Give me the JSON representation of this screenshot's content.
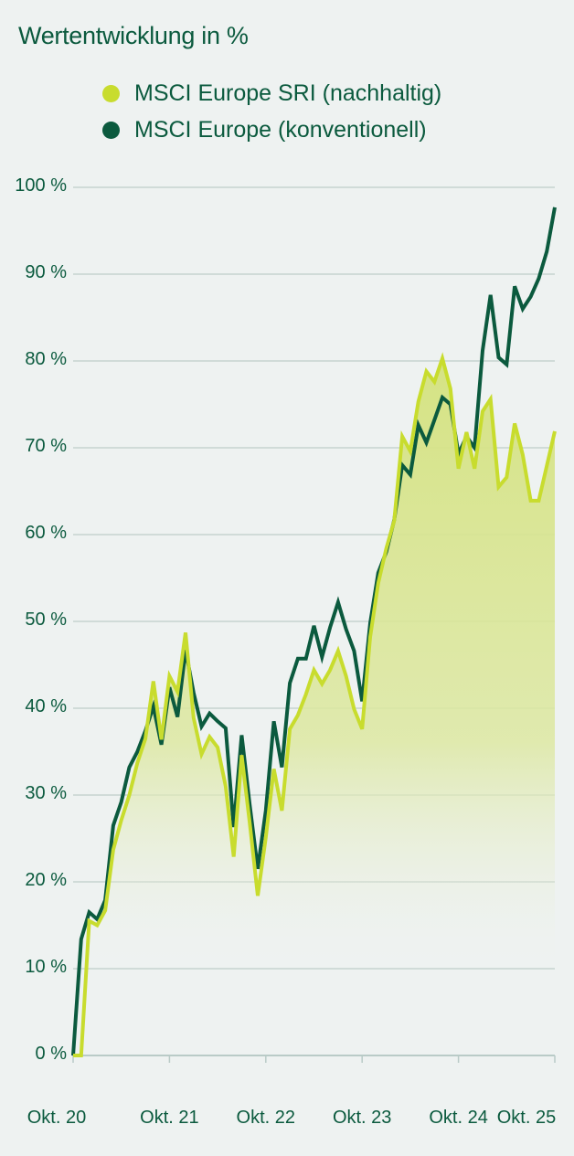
{
  "title": "Wertentwicklung in %",
  "legend": [
    {
      "label": "MSCI Europe SRI (nachhaltig)",
      "color": "#c8dc2e"
    },
    {
      "label": "MSCI Europe (konventionell)",
      "color": "#0b5a3e"
    }
  ],
  "colors": {
    "background": "#eef2f1",
    "grid": "#c5d3d0",
    "axis": "#b9cbc7",
    "text": "#0b5a3e",
    "sri_line": "#c8dc2e",
    "sri_fill": "#d7e48a",
    "conventional_line": "#0b5a3e"
  },
  "y_axis": {
    "ticks": [
      "100 %",
      "90 %",
      "80 %",
      "70 %",
      "60 %",
      "50 %",
      "40 %",
      "30 %",
      "20 %",
      "10 %",
      "0 %"
    ],
    "values": [
      100,
      90,
      80,
      70,
      60,
      50,
      40,
      30,
      20,
      10,
      0
    ]
  },
  "x_axis": {
    "ticks": [
      "Okt. 20",
      "Okt. 21",
      "Okt. 22",
      "Okt. 23",
      "Okt. 24",
      "Okt. 25"
    ]
  },
  "chart_data": {
    "type": "area",
    "title": "Wertentwicklung in %",
    "xlabel": "",
    "ylabel": "Wertentwicklung in %",
    "ylim": [
      0,
      100
    ],
    "grid": true,
    "legend_position": "top",
    "x_ticks": [
      "Okt. 20",
      "Okt. 21",
      "Okt. 22",
      "Okt. 23",
      "Okt. 24",
      "Okt. 25"
    ],
    "x": [
      0,
      1,
      2,
      3,
      4,
      5,
      6,
      7,
      8,
      9,
      10,
      11,
      12,
      13,
      14,
      15,
      16,
      17,
      18,
      19,
      20,
      21,
      22,
      23,
      24,
      25,
      26,
      27,
      28,
      29,
      30,
      31,
      32,
      33,
      34,
      35,
      36,
      37,
      38,
      39,
      40,
      41,
      42,
      43,
      44,
      45,
      46,
      47,
      48,
      49,
      50,
      51,
      52,
      53,
      54,
      55,
      56,
      57,
      58,
      59,
      60
    ],
    "x_unit": "months since Okt. 20",
    "series": [
      {
        "name": "MSCI Europe SRI (nachhaltig)",
        "style": "line+area",
        "values": [
          0,
          0,
          15.5,
          15,
          16.7,
          23.7,
          27.1,
          30,
          33.7,
          36.5,
          43.1,
          36.4,
          43.7,
          41.9,
          48.7,
          38.9,
          34.7,
          36.7,
          35.5,
          31,
          22.9,
          34.6,
          26.8,
          18.4,
          25.1,
          33,
          28.2,
          37.6,
          39.2,
          41.6,
          44.4,
          42.8,
          44.4,
          46.6,
          43.7,
          39.9,
          37.6,
          48.2,
          54.4,
          58.4,
          61.6,
          71.3,
          69.6,
          75.3,
          78.8,
          77.6,
          80.3,
          76.8,
          67.6,
          71.8,
          67.6,
          74.2,
          75.6,
          65.5,
          66.6,
          72.8,
          69.2,
          63.9,
          63.9,
          67.9,
          71.9
        ]
      },
      {
        "name": "MSCI Europe (konventionell)",
        "style": "line",
        "values": [
          0,
          13.4,
          16.5,
          15.7,
          17.9,
          26.5,
          29.2,
          33.2,
          35,
          37.4,
          40.2,
          35.8,
          42.4,
          39,
          46.7,
          41.8,
          37.9,
          39.4,
          38.5,
          37.7,
          26.3,
          36.9,
          28.9,
          21.5,
          28.2,
          38.5,
          33.2,
          42.9,
          45.7,
          45.7,
          49.5,
          45.9,
          49.3,
          52.2,
          49.1,
          46.6,
          40.8,
          49.8,
          55.6,
          58,
          61.7,
          68,
          66.9,
          72.6,
          70.6,
          73.2,
          75.8,
          75,
          69.3,
          71.3,
          70,
          81.2,
          87.6,
          80.4,
          79.6,
          88.6,
          86,
          87.4,
          89.5,
          92.6,
          97.7
        ]
      }
    ]
  }
}
